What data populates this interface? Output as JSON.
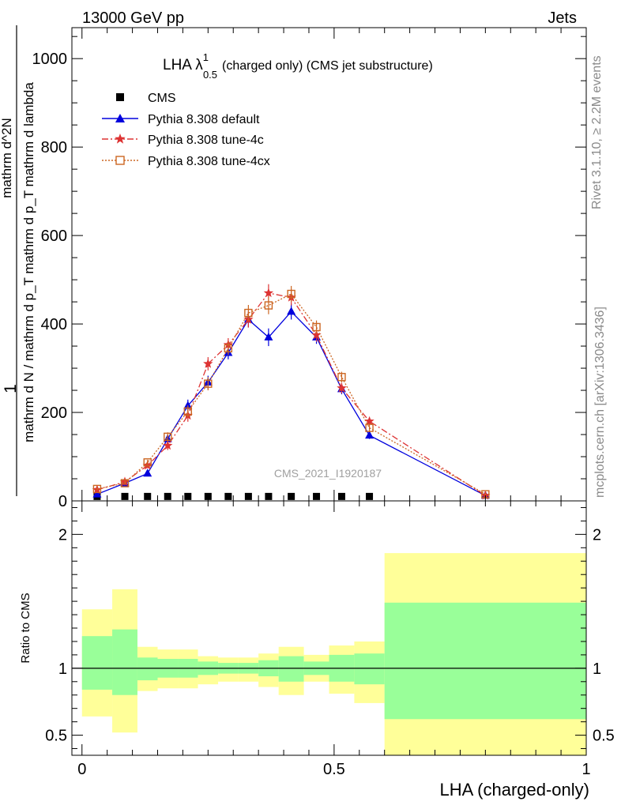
{
  "header": {
    "left": "13000 GeV pp",
    "right": "Jets"
  },
  "side_texts": {
    "rivet": "Rivet 3.1.10, ≥ 2.2M events",
    "mcplots": "mcplots.cern.ch [arXiv:1306.3436]"
  },
  "chart_data": [
    {
      "type": "line",
      "title": "LHA λ",
      "title_sup": "1",
      "title_sub": "0.5",
      "title_suffix": "(charged only) (CMS jet substructure)",
      "ylabel_lines": [
        "1",
        "mathrm d N / mathrm d p_T mathrm d p_T mathrm d lambda",
        "mathrm d^2N"
      ],
      "watermark": "CMS_2021_I1920187",
      "xlim": [
        -0.02,
        1.0
      ],
      "ylim": [
        0,
        1070
      ],
      "yticks": [
        0,
        200,
        400,
        600,
        800,
        1000
      ],
      "ytick_labels": [
        "0",
        "200",
        "400",
        "600",
        "800",
        "1000"
      ],
      "legend_position": "top-left",
      "series": [
        {
          "name": "CMS",
          "color": "#000000",
          "marker": "square",
          "line": "none",
          "x": [
            0.03,
            0.085,
            0.13,
            0.17,
            0.21,
            0.25,
            0.29,
            0.33,
            0.37,
            0.415,
            0.465,
            0.515,
            0.57
          ],
          "y": [
            2,
            2,
            2,
            2,
            2,
            2,
            2,
            2,
            2,
            2,
            2,
            2,
            2
          ]
        },
        {
          "name": "Pythia 8.308 default",
          "color": "#0000dd",
          "marker": "triangle",
          "line": "solid",
          "x": [
            0.03,
            0.085,
            0.13,
            0.17,
            0.21,
            0.25,
            0.29,
            0.33,
            0.37,
            0.415,
            0.465,
            0.515,
            0.57,
            0.8
          ],
          "y": [
            15,
            40,
            62,
            140,
            215,
            268,
            335,
            410,
            370,
            428,
            370,
            253,
            148,
            12
          ],
          "err": [
            4,
            5,
            6,
            10,
            14,
            15,
            15,
            18,
            20,
            18,
            15,
            12,
            8,
            3
          ]
        },
        {
          "name": "Pythia 8.308 tune-4c",
          "color": "#dd3333",
          "marker": "star",
          "line": "dashdot",
          "x": [
            0.03,
            0.085,
            0.13,
            0.17,
            0.21,
            0.25,
            0.29,
            0.33,
            0.37,
            0.415,
            0.465,
            0.515,
            0.57,
            0.8
          ],
          "y": [
            25,
            43,
            80,
            125,
            193,
            310,
            353,
            410,
            470,
            460,
            375,
            255,
            180,
            12
          ],
          "err": [
            4,
            5,
            6,
            10,
            14,
            15,
            15,
            18,
            20,
            18,
            15,
            12,
            8,
            3
          ]
        },
        {
          "name": "Pythia 8.308 tune-4cx",
          "color": "#cc6622",
          "marker": "open-square",
          "line": "dotted",
          "x": [
            0.03,
            0.085,
            0.13,
            0.17,
            0.21,
            0.25,
            0.29,
            0.33,
            0.37,
            0.415,
            0.465,
            0.515,
            0.57,
            0.8
          ],
          "y": [
            27,
            40,
            87,
            145,
            202,
            265,
            345,
            425,
            442,
            468,
            393,
            280,
            165,
            15
          ],
          "err": [
            4,
            5,
            6,
            10,
            14,
            15,
            15,
            18,
            20,
            18,
            15,
            12,
            8,
            3
          ]
        }
      ]
    },
    {
      "type": "area",
      "ylabel": "Ratio to CMS",
      "xlabel": "LHA (charged-only)",
      "xlim": [
        -0.02,
        1.0
      ],
      "ylim": [
        0.35,
        2.25
      ],
      "xticks": [
        0,
        0.5,
        1
      ],
      "xtick_labels": [
        "0",
        "0.5",
        "1"
      ],
      "yticks": [
        0.5,
        1,
        2
      ],
      "ytick_labels": [
        "0.5",
        "1",
        "2"
      ],
      "band_colors": {
        "outer": "#ffff99",
        "inner": "#99ff99"
      },
      "bands": [
        {
          "x0": 0.0,
          "x1": 0.06,
          "outer": [
            0.64,
            1.44
          ],
          "inner": [
            0.84,
            1.24
          ]
        },
        {
          "x0": 0.06,
          "x1": 0.11,
          "outer": [
            0.52,
            1.59
          ],
          "inner": [
            0.8,
            1.29
          ]
        },
        {
          "x0": 0.11,
          "x1": 0.15,
          "outer": [
            0.83,
            1.16
          ],
          "inner": [
            0.91,
            1.08
          ]
        },
        {
          "x0": 0.15,
          "x1": 0.19,
          "outer": [
            0.85,
            1.14
          ],
          "inner": [
            0.93,
            1.07
          ]
        },
        {
          "x0": 0.19,
          "x1": 0.23,
          "outer": [
            0.85,
            1.14
          ],
          "inner": [
            0.93,
            1.07
          ]
        },
        {
          "x0": 0.23,
          "x1": 0.27,
          "outer": [
            0.88,
            1.09
          ],
          "inner": [
            0.95,
            1.05
          ]
        },
        {
          "x0": 0.27,
          "x1": 0.31,
          "outer": [
            0.9,
            1.08
          ],
          "inner": [
            0.96,
            1.04
          ]
        },
        {
          "x0": 0.31,
          "x1": 0.35,
          "outer": [
            0.9,
            1.08
          ],
          "inner": [
            0.96,
            1.04
          ]
        },
        {
          "x0": 0.35,
          "x1": 0.39,
          "outer": [
            0.86,
            1.11
          ],
          "inner": [
            0.94,
            1.06
          ]
        },
        {
          "x0": 0.39,
          "x1": 0.44,
          "outer": [
            0.8,
            1.16
          ],
          "inner": [
            0.9,
            1.09
          ]
        },
        {
          "x0": 0.44,
          "x1": 0.49,
          "outer": [
            0.9,
            1.1
          ],
          "inner": [
            0.95,
            1.05
          ]
        },
        {
          "x0": 0.49,
          "x1": 0.54,
          "outer": [
            0.81,
            1.17
          ],
          "inner": [
            0.9,
            1.1
          ]
        },
        {
          "x0": 0.54,
          "x1": 0.6,
          "outer": [
            0.74,
            1.2
          ],
          "inner": [
            0.88,
            1.11
          ]
        },
        {
          "x0": 0.6,
          "x1": 1.0,
          "outer": [
            0.35,
            1.86
          ],
          "inner": [
            0.62,
            1.49
          ]
        }
      ],
      "reference_line": 1
    }
  ]
}
